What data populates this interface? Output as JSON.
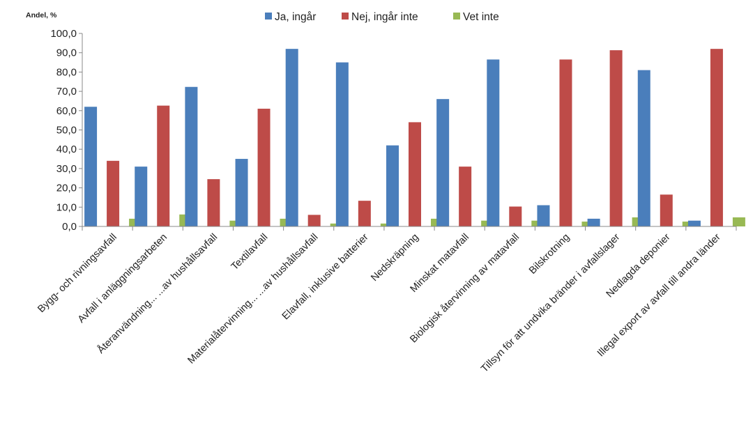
{
  "chart_data": {
    "type": "bar",
    "ylabel": "Andel, %",
    "ylim": [
      0,
      100
    ],
    "ytick_step": 10,
    "ytick_labels": [
      "0,0",
      "10,0",
      "20,0",
      "30,0",
      "40,0",
      "50,0",
      "60,0",
      "70,0",
      "80,0",
      "90,0",
      "100,0"
    ],
    "grid": false,
    "legend_position": "top-center",
    "categories": [
      "Bygg- och rivningsavfall",
      "Avfall i anläggningsarbeten",
      "Återanvändning... ...av hushållsavfall",
      "Textilavfall",
      "Materialåtervinning... ...av hushållsavfall",
      "Elavfall, inklusive batterier",
      "Nedskräpning",
      "Minskat matavfall",
      "Biologisk återvinning av matavfall",
      "Bilskrotning",
      "Tillsyn för att undvika bränder i avfallslager",
      "Nedlagda deponier",
      "Illegal export av avfall till andra länder"
    ],
    "series": [
      {
        "name": "Ja, ingår",
        "color": "#4a7ebb",
        "values": [
          62,
          31,
          72.3,
          35,
          92,
          85,
          42,
          66,
          86.5,
          11,
          4,
          81,
          3
        ]
      },
      {
        "name": "Nej, ingår inte",
        "color": "#be4b48",
        "values": [
          34,
          62.6,
          24.5,
          61,
          6,
          13.3,
          54,
          31,
          10.3,
          86.5,
          91.3,
          16.5,
          92
        ]
      },
      {
        "name": "Vet inte",
        "color": "#98b954",
        "values": [
          4,
          6.2,
          3,
          4,
          1.5,
          1.5,
          4,
          3,
          3,
          2.5,
          4.7,
          2.5,
          4.7
        ]
      }
    ]
  }
}
